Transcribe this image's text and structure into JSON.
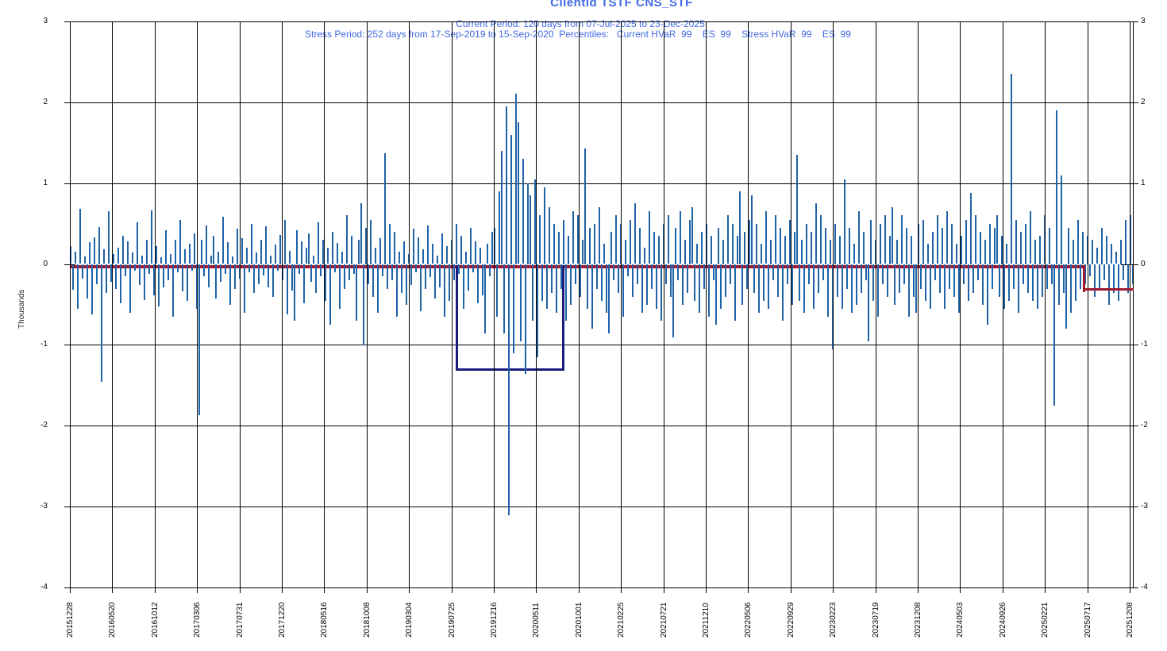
{
  "header": {
    "line1": "ClientId TSTF CNS_STF",
    "line2": "Current Period: 120 days from 07-Jul-2025 to 23-Dec-2025",
    "line3": "Stress Period: 252 days from 17-Sep-2019 to 15-Sep-2020  Percentiles:   Current HVaR  99    ES  99    Stress HVaR  99    ES  99",
    "color": "#4169E1"
  },
  "chart_data": {
    "type": "bar",
    "title": "ClientId TSTF CNS_STF",
    "ylabel": "Thousands",
    "ylim": [
      -4,
      3
    ],
    "y_ticks": [
      3,
      2,
      1,
      0,
      -1,
      -2,
      -3,
      -4
    ],
    "grid": true,
    "bar_color": "#1F63A8",
    "x_tick_labels": [
      "20151228",
      "20160520",
      "20161012",
      "20170306",
      "20170731",
      "20171220",
      "20180516",
      "20181008",
      "20190304",
      "20190725",
      "20191216",
      "20200511",
      "20201001",
      "20210225",
      "20210721",
      "20211210",
      "20220506",
      "20220929",
      "20230223",
      "20230719",
      "20231208",
      "20240503",
      "20240926",
      "20250221",
      "20250717",
      "20251208"
    ],
    "values": [
      0.22,
      -0.31,
      0.15,
      -0.55,
      0.68,
      -0.18,
      0.09,
      -0.42,
      0.27,
      -0.62,
      0.33,
      -0.25,
      0.46,
      -1.45,
      0.18,
      -0.35,
      0.65,
      -0.22,
      0.12,
      -0.3,
      0.2,
      -0.48,
      0.35,
      -0.15,
      0.28,
      -0.6,
      0.14,
      -0.08,
      0.52,
      -0.26,
      0.1,
      -0.44,
      0.3,
      -0.12,
      0.66,
      -0.38,
      0.22,
      -0.52,
      0.08,
      -0.28,
      0.42,
      -0.2,
      0.12,
      -0.65,
      0.3,
      -0.1,
      0.55,
      -0.33,
      0.18,
      -0.45,
      0.25,
      -0.08,
      0.38,
      -0.55,
      -1.87,
      0.3,
      -0.15,
      0.48,
      -0.28,
      0.1,
      0.35,
      -0.42,
      0.15,
      -0.22,
      0.58,
      -0.12,
      0.27,
      -0.5,
      0.09,
      -0.3,
      0.44,
      -0.18,
      0.32,
      -0.6,
      0.2,
      -0.1,
      0.5,
      -0.35,
      0.14,
      -0.25,
      0.3,
      -0.14,
      0.47,
      -0.28,
      0.1,
      -0.4,
      0.24,
      -0.08,
      0.36,
      -0.2,
      0.55,
      -0.62,
      0.16,
      -0.32,
      -0.7,
      0.42,
      -0.12,
      0.28,
      -0.48,
      0.2,
      0.38,
      -0.22,
      0.1,
      -0.35,
      0.52,
      -0.15,
      0.3,
      -0.45,
      0.2,
      -0.75,
      0.4,
      -0.1,
      0.26,
      -0.55,
      0.15,
      -0.3,
      0.6,
      -0.2,
      0.35,
      -0.12,
      -0.7,
      0.3,
      0.75,
      -1.0,
      0.45,
      -0.25,
      0.55,
      -0.4,
      0.2,
      -0.6,
      0.32,
      -0.15,
      1.37,
      -0.3,
      0.5,
      -0.2,
      0.4,
      -0.65,
      0.15,
      -0.35,
      0.28,
      -0.5,
      0.12,
      -0.26,
      0.44,
      -0.1,
      0.33,
      -0.58,
      0.18,
      -0.3,
      0.48,
      -0.16,
      0.25,
      -0.42,
      0.1,
      -0.28,
      0.38,
      -0.65,
      0.22,
      -0.45,
      0.3,
      -0.2,
      0.5,
      -0.12,
      0.35,
      -0.55,
      0.15,
      -0.32,
      0.45,
      -0.1,
      0.28,
      -0.48,
      0.2,
      -0.38,
      -0.85,
      0.25,
      -0.15,
      0.4,
      0.45,
      -0.65,
      0.9,
      1.4,
      -0.85,
      1.95,
      -3.1,
      1.6,
      -1.1,
      2.11,
      1.75,
      -0.95,
      1.3,
      -1.35,
      1.0,
      0.85,
      -0.7,
      1.05,
      -1.15,
      0.6,
      -0.45,
      0.95,
      -0.55,
      0.7,
      -0.35,
      0.5,
      -0.6,
      0.4,
      -0.3,
      0.55,
      -0.7,
      0.35,
      -0.5,
      0.65,
      -0.25,
      0.6,
      -0.4,
      0.3,
      1.43,
      -0.55,
      0.45,
      -0.8,
      0.5,
      -0.3,
      0.7,
      -0.45,
      0.25,
      -0.6,
      -0.85,
      0.4,
      -0.2,
      0.6,
      -0.35,
      0.5,
      -0.65,
      0.3,
      -0.15,
      0.55,
      -0.4,
      0.75,
      -0.25,
      0.45,
      -0.6,
      0.2,
      -0.5,
      0.65,
      -0.3,
      0.4,
      -0.55,
      0.35,
      -0.7,
      0.5,
      -0.25,
      0.6,
      -0.4,
      -0.9,
      0.45,
      -0.2,
      0.65,
      -0.5,
      0.3,
      -0.35,
      0.55,
      0.7,
      -0.45,
      0.25,
      -0.6,
      0.4,
      -0.3,
      0.5,
      -0.65,
      0.35,
      -0.2,
      -0.75,
      0.45,
      -0.55,
      0.3,
      -0.4,
      0.6,
      -0.25,
      0.5,
      -0.7,
      0.35,
      0.9,
      -0.5,
      0.4,
      -0.3,
      0.55,
      0.85,
      -0.35,
      0.5,
      -0.6,
      0.25,
      -0.45,
      0.65,
      -0.55,
      0.3,
      -0.2,
      0.6,
      -0.4,
      0.45,
      -0.7,
      0.35,
      -0.25,
      0.55,
      -0.5,
      0.4,
      1.35,
      -0.45,
      0.3,
      -0.6,
      0.5,
      -0.25,
      0.4,
      -0.55,
      0.75,
      -0.35,
      0.6,
      -0.2,
      0.45,
      -0.65,
      0.3,
      -1.05,
      0.5,
      -0.4,
      0.35,
      -0.55,
      1.05,
      -0.3,
      0.45,
      -0.6,
      0.25,
      -0.5,
      0.65,
      -0.35,
      0.4,
      -0.2,
      -0.95,
      0.55,
      -0.45,
      0.3,
      -0.65,
      0.5,
      -0.25,
      0.6,
      -0.4,
      0.35,
      0.7,
      -0.5,
      0.3,
      -0.35,
      0.6,
      -0.25,
      0.45,
      -0.65,
      0.35,
      -0.4,
      -0.6,
      0.5,
      -0.3,
      0.55,
      -0.45,
      0.25,
      -0.55,
      0.4,
      -0.2,
      0.6,
      -0.35,
      0.45,
      -0.55,
      0.65,
      -0.3,
      0.5,
      -0.4,
      0.25,
      -0.6,
      0.35,
      -0.25,
      0.55,
      -0.45,
      0.88,
      -0.35,
      0.6,
      -0.2,
      0.4,
      -0.5,
      0.3,
      -0.75,
      0.5,
      -0.3,
      0.45,
      0.6,
      -0.4,
      0.35,
      -0.55,
      0.25,
      -0.45,
      2.35,
      -0.3,
      0.55,
      -0.6,
      0.4,
      -0.25,
      0.5,
      -0.35,
      0.65,
      -0.45,
      0.3,
      -0.55,
      0.35,
      -0.4,
      0.6,
      -0.3,
      0.45,
      -0.25,
      -1.75,
      1.9,
      -0.5,
      1.1,
      -0.35,
      -0.8,
      0.45,
      -0.6,
      0.3,
      -0.45,
      0.55,
      -0.3,
      0.4,
      -0.25,
      0.35,
      -0.15,
      0.3,
      -0.4,
      0.2,
      -0.3,
      0.45,
      -0.2,
      0.35,
      -0.5,
      0.25,
      -0.35,
      0.15,
      -0.45,
      0.3,
      -0.2,
      0.55,
      -0.35,
      0.6,
      -0.25
    ],
    "annotations": {
      "current_hvar_line": {
        "color": "#A01931",
        "main_level": -0.03,
        "tail_level": -0.31,
        "tail_start_frac": 0.952
      },
      "stress_window": {
        "color": "#1C1C7E",
        "start_frac": 0.3627,
        "end_frac": 0.465,
        "top_level": -0.01,
        "bottom_level": -1.32
      }
    }
  }
}
